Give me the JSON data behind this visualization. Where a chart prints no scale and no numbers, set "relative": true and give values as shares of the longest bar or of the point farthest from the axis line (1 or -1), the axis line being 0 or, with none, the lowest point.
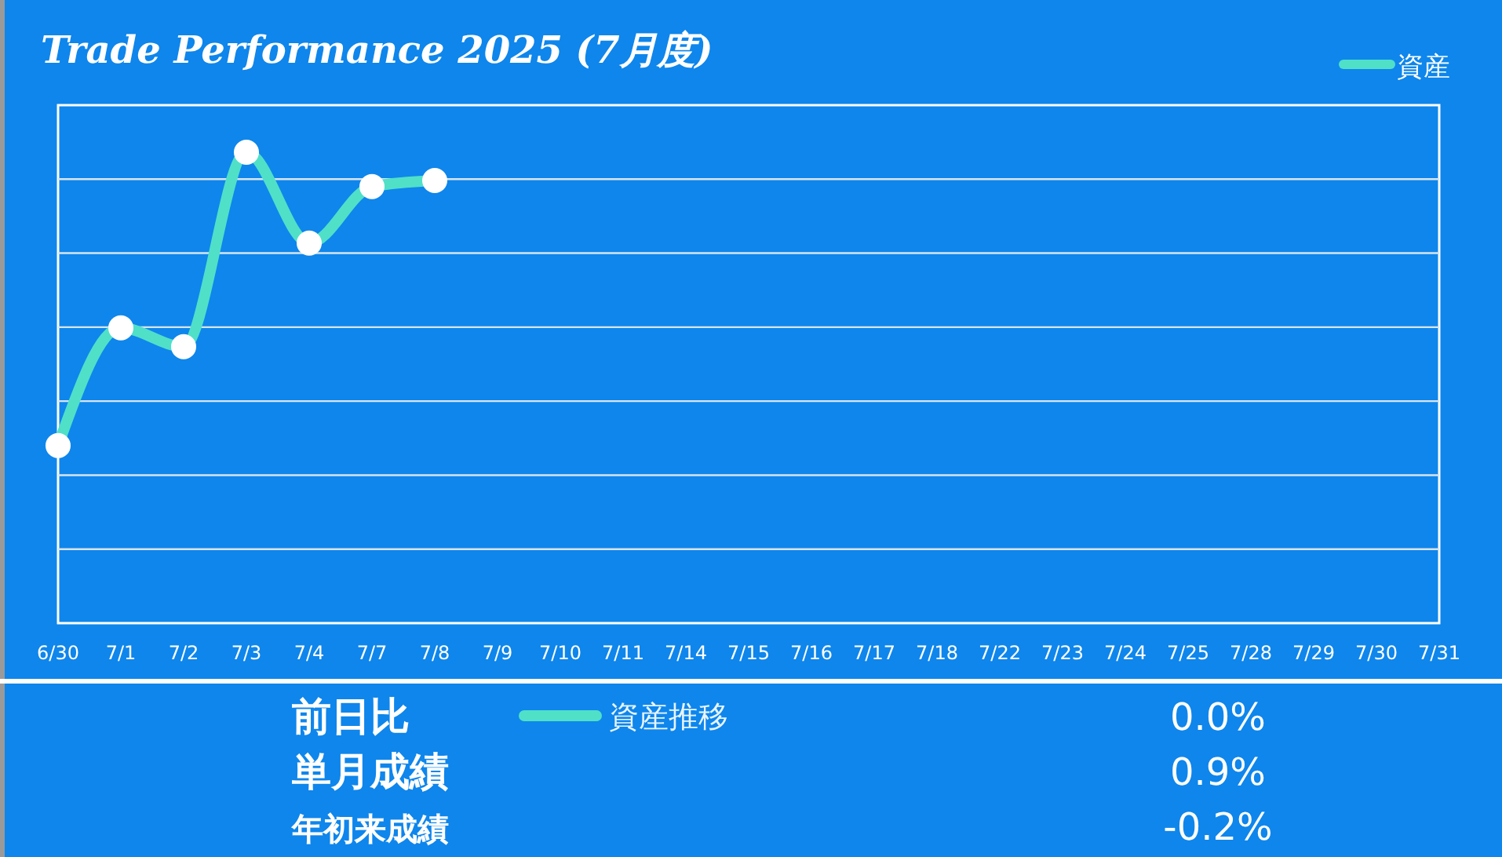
{
  "chart_data": [
    {
      "type": "line",
      "title": "Trade Performance 2025 (7月度)",
      "relative": true,
      "categories": [
        "6/30",
        "7/1",
        "7/2",
        "7/3",
        "7/4",
        "7/7",
        "7/8",
        "7/9",
        "7/10",
        "7/11",
        "7/14",
        "7/15",
        "7/16",
        "7/17",
        "7/18",
        "7/22",
        "7/23",
        "7/24",
        "7/25",
        "7/28",
        "7/29",
        "7/30",
        "7/31"
      ],
      "series": [
        {
          "name": "資産",
          "color": "#50e0c8",
          "values": [
            0.377,
            0.627,
            0.587,
            1,
            0.807,
            0.927,
            0.94,
            null,
            null,
            null,
            null,
            null,
            null,
            null,
            null,
            null,
            null,
            null,
            null,
            null,
            null,
            null,
            null
          ]
        }
      ],
      "grid": true,
      "legend": "top right",
      "marker": "circle",
      "line_style": "solid"
    },
    {
      "type": "other",
      "categories": [
        "前日比",
        "単月成績",
        "年初来成績"
      ],
      "value_labels": [
        "0.0%",
        "0.9%",
        "-0.2%"
      ],
      "annotations": [
        "資産推移"
      ]
    }
  ]
}
